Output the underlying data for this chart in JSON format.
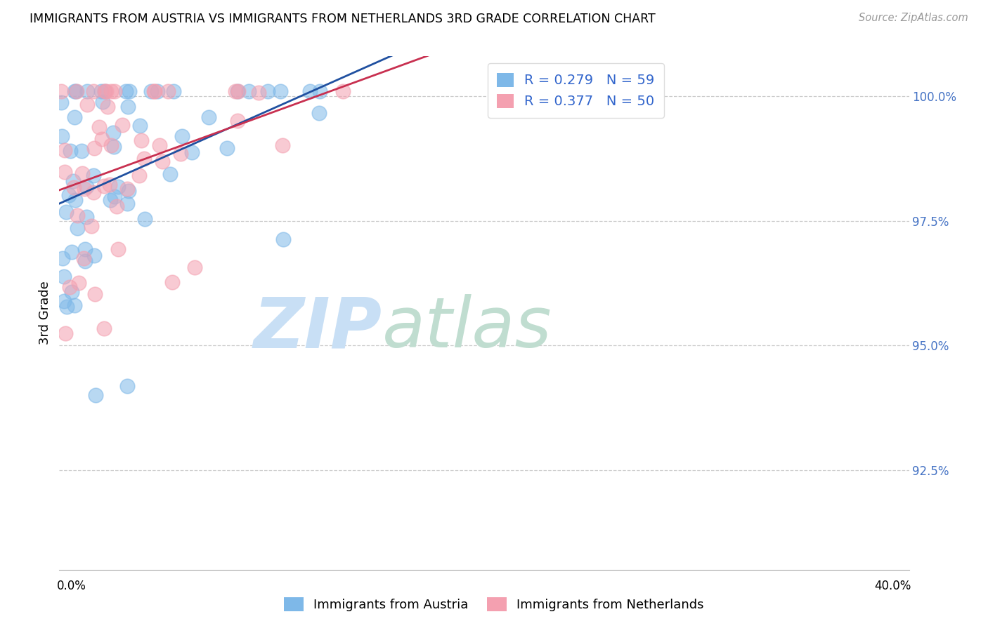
{
  "title": "IMMIGRANTS FROM AUSTRIA VS IMMIGRANTS FROM NETHERLANDS 3RD GRADE CORRELATION CHART",
  "source": "Source: ZipAtlas.com",
  "ylabel": "3rd Grade",
  "ylabel_right_labels": [
    "100.0%",
    "97.5%",
    "95.0%",
    "92.5%"
  ],
  "ylabel_right_values": [
    1.0,
    0.975,
    0.95,
    0.925
  ],
  "xmin": 0.0,
  "xmax": 0.4,
  "ymin": 0.905,
  "ymax": 1.008,
  "legend_R1": "R = 0.279",
  "legend_N1": "N = 59",
  "legend_R2": "R = 0.377",
  "legend_N2": "N = 50",
  "color_austria": "#7EB8E8",
  "color_netherlands": "#F4A0B0",
  "trendline_color_austria": "#2050A0",
  "trendline_color_netherlands": "#C83050",
  "watermark_zip_color": "#c8dff5",
  "watermark_atlas_color": "#c0ddd0",
  "n_austria": 59,
  "n_netherlands": 50,
  "R_austria": 0.279,
  "R_netherlands": 0.377
}
